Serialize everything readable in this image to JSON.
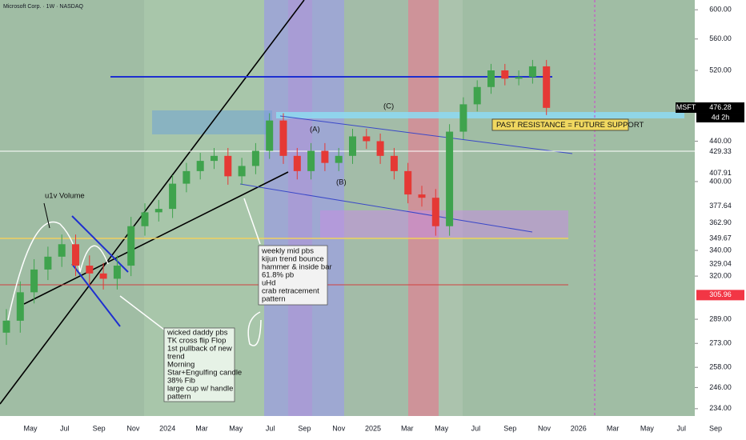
{
  "chart_data": {
    "type": "candlestick",
    "title": "Microsoft Corp. · 1W · NASDAQ",
    "symbol": "MSFT",
    "countdown": "4d 2h",
    "log_scale": true,
    "up_color": "#3fa34d",
    "down_color": "#e53935",
    "x_labels": [
      "May",
      "Jul",
      "Sep",
      "Nov",
      "2024",
      "Mar",
      "May",
      "Jul",
      "Sep",
      "Nov",
      "2025",
      "Mar",
      "May",
      "Jul",
      "Sep",
      "Nov",
      "2026",
      "Mar",
      "May",
      "Jul",
      "Sep"
    ],
    "open": [
      280,
      288,
      308,
      325,
      335,
      345,
      328,
      322,
      318,
      328,
      360,
      372,
      375,
      398,
      410,
      420,
      425,
      405,
      415,
      430,
      462,
      425,
      410,
      430,
      418,
      425,
      445,
      440,
      425,
      410,
      388,
      385,
      360,
      450,
      480,
      500,
      520,
      510,
      512,
      525
    ],
    "high": [
      296,
      316,
      333,
      343,
      353,
      353,
      336,
      330,
      336,
      368,
      380,
      383,
      406,
      418,
      428,
      433,
      433,
      423,
      438,
      470,
      470,
      433,
      438,
      438,
      433,
      453,
      453,
      448,
      433,
      418,
      396,
      393,
      458,
      488,
      508,
      528,
      528,
      520,
      533,
      533
    ],
    "low": [
      272,
      280,
      300,
      317,
      327,
      320,
      314,
      310,
      310,
      320,
      352,
      364,
      367,
      390,
      402,
      412,
      397,
      397,
      407,
      422,
      417,
      402,
      402,
      410,
      410,
      417,
      432,
      417,
      402,
      380,
      377,
      352,
      352,
      442,
      472,
      492,
      502,
      502,
      504,
      468
    ],
    "close": [
      288,
      308,
      325,
      335,
      345,
      328,
      322,
      318,
      328,
      360,
      372,
      375,
      398,
      410,
      420,
      425,
      405,
      415,
      430,
      462,
      425,
      410,
      430,
      418,
      425,
      445,
      440,
      425,
      410,
      388,
      385,
      360,
      450,
      480,
      500,
      520,
      510,
      512,
      525,
      476
    ],
    "ylim": [
      230,
      614
    ],
    "yticks": [
      {
        "value": 600,
        "label": "600.00"
      },
      {
        "value": 560,
        "label": "560.00"
      },
      {
        "value": 520,
        "label": "520.00"
      },
      {
        "value": 440,
        "label": "440.00"
      },
      {
        "value": 400,
        "label": "400.00"
      },
      {
        "value": 340,
        "label": "340.00"
      },
      {
        "value": 320,
        "label": "320.00"
      },
      {
        "value": 289,
        "label": "289.00"
      },
      {
        "value": 273,
        "label": "273.00"
      },
      {
        "value": 258,
        "label": "258.00"
      },
      {
        "value": 246,
        "label": "246.00"
      },
      {
        "value": 234,
        "label": "234.00"
      }
    ],
    "price_labels": [
      {
        "value": 476.28,
        "label": "476.28",
        "color": "#000000"
      },
      {
        "value": 429.33,
        "label": "429.33",
        "color": "#ffffff"
      },
      {
        "value": 407.91,
        "label": "407.91",
        "color": "#ffffff"
      },
      {
        "value": 377.64,
        "label": "377.64",
        "color": "#ffffff"
      },
      {
        "value": 362.9,
        "label": "362.90",
        "color": "#ffffff"
      },
      {
        "value": 349.67,
        "label": "349.67",
        "color": "#ffffff"
      },
      {
        "value": 329.04,
        "label": "329.04",
        "color": "#ffffff"
      },
      {
        "value": 305.96,
        "label": "305.96",
        "color": "#f23645"
      }
    ],
    "annotations": {
      "volume": "u1v Volume",
      "support": "PAST RESISTANCE = FUTURE SUPPORT",
      "wave_a": "(A)",
      "wave_b": "(B)",
      "wave_c": "(C)",
      "note_mid": [
        "weekly mid pbs",
        "kijun trend bounce",
        "hammer & inside bar",
        "61.8% pb",
        "uHd",
        "crab retracement",
        "pattern"
      ],
      "note_low": [
        "wicked daddy pbs",
        "TK cross flip Flop",
        "1st pullback of new",
        "trend",
        "Morning",
        "Star+Engulfing candle",
        "38% Fib",
        "large cup w/ handle",
        "pattern"
      ]
    }
  }
}
